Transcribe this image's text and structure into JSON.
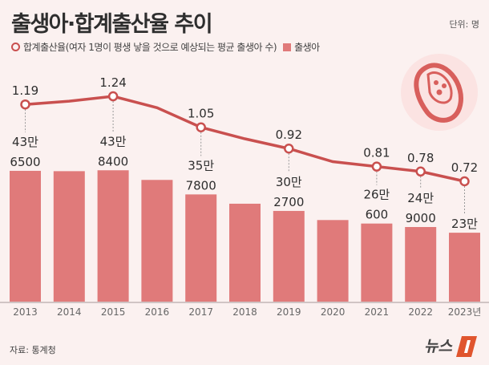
{
  "title": "출생아·합계출산율 추이",
  "unit": "단위: 명",
  "legend": {
    "line": "합계출산율(여자 1명이 평생 낳을 것으로 예상되는 평균 출생아 수)",
    "bar": "출생아"
  },
  "source": "자료: 통계청",
  "logo": "뉴스1",
  "colors": {
    "bar": "#e07a7a",
    "line": "#c9504f",
    "background": "#fbf1f0"
  },
  "chart_data": {
    "type": "bar+line",
    "categories": [
      "2013",
      "2014",
      "2015",
      "2016",
      "2017",
      "2018",
      "2019",
      "2020",
      "2021",
      "2022",
      "2023년"
    ],
    "series": [
      {
        "name": "출생아",
        "type": "bar",
        "values": [
          436500,
          435400,
          438400,
          406200,
          357800,
          326800,
          302700,
          272300,
          260600,
          249000,
          230000
        ],
        "labels": [
          [
            "43만",
            "6500"
          ],
          null,
          [
            "43만",
            "8400"
          ],
          null,
          [
            "35만",
            "7800"
          ],
          null,
          [
            "30만",
            "2700"
          ],
          null,
          [
            "26만",
            "600"
          ],
          [
            "24만",
            "9000"
          ],
          [
            "23만"
          ]
        ]
      },
      {
        "name": "합계출산율",
        "type": "line",
        "values": [
          1.19,
          1.21,
          1.24,
          1.17,
          1.05,
          0.98,
          0.92,
          0.84,
          0.81,
          0.78,
          0.72
        ],
        "labels": [
          "1.19",
          null,
          "1.24",
          null,
          "1.05",
          null,
          "0.92",
          null,
          "0.81",
          "0.78",
          "0.72"
        ]
      }
    ]
  }
}
